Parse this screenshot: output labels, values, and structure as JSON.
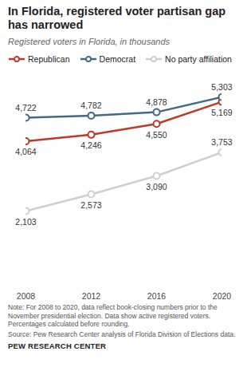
{
  "chart_data": {
    "type": "line",
    "title": "In Florida, registered voter partisan gap has narrowed",
    "subtitle": "Registered voters in Florida, in thousands",
    "x": [
      2008,
      2012,
      2016,
      2020
    ],
    "xlim": [
      2008,
      2020
    ],
    "xticks": [
      2008,
      2012,
      2016,
      2020
    ],
    "ylim": [
      0,
      6000
    ],
    "tick_labels": "x",
    "grid": false,
    "legend": "top",
    "data_labels": true,
    "series": [
      {
        "name": "Republican",
        "color": "#bf3927",
        "marker": "circle",
        "line_style": "solid",
        "values": [
          4064,
          4246,
          4550,
          5169
        ],
        "value_labels": [
          "4,064",
          "4,246",
          "4,550",
          "5,169"
        ]
      },
      {
        "name": "Democrat",
        "color": "#436a84",
        "marker": "circle",
        "line_style": "solid",
        "values": [
          4722,
          4782,
          4878,
          5303
        ],
        "value_labels": [
          "4,722",
          "4,782",
          "4,878",
          "5,303"
        ]
      },
      {
        "name": "No party affiliation",
        "color": "#cfcfcf",
        "marker": "circle",
        "line_style": "solid",
        "values": [
          2103,
          2573,
          3090,
          3753
        ],
        "value_labels": [
          "2,103",
          "2,573",
          "3,090",
          "3,753"
        ]
      }
    ],
    "note": "Note: For 2008 to 2020, data reflect book-closing numbers prior to the November presidential election. Data show active registered voters. Percentages calculated before rounding.",
    "source": "Source: Pew Research Center analysis of Florida Division of Elections data.",
    "credit": "PEW RESEARCH CENTER"
  }
}
